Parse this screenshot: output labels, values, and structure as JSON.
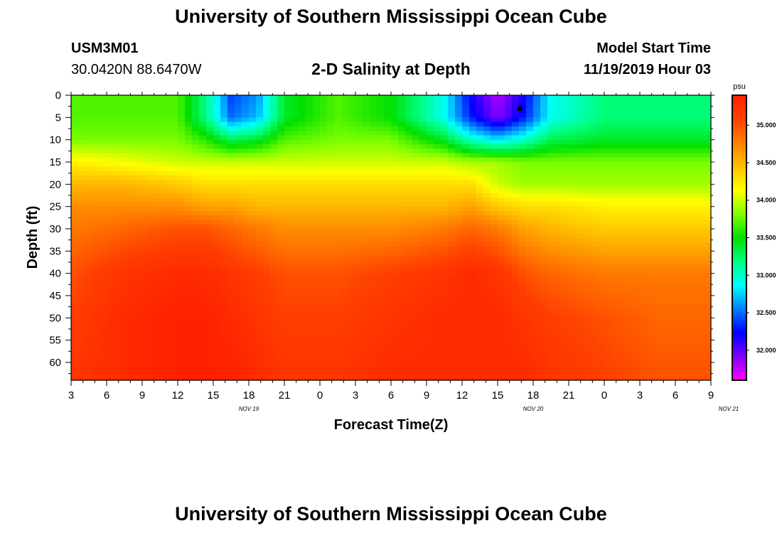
{
  "title_top": "University of Southern Mississippi Ocean Cube",
  "title_bottom": "University of Southern Mississippi Ocean Cube",
  "station_id": "USM3M01",
  "station_coords": "30.0420N 88.6470W",
  "model_start_label": "Model Start Time",
  "model_start_value": "11/19/2019 Hour 03",
  "colors": {
    "colormap": [
      "#ff00ff",
      "#8000ff",
      "#0000ff",
      "#0080ff",
      "#00ffff",
      "#00ff80",
      "#00e000",
      "#80ff00",
      "#ffff00",
      "#ffc000",
      "#ff8000",
      "#ff4000",
      "#ff2000"
    ]
  },
  "chart_data": {
    "type": "heatmap",
    "title": "2-D Salinity at Depth",
    "xlabel": "Forecast Time(Z)",
    "ylabel": "Depth (ft)",
    "x_tick_labels": [
      "3",
      "6",
      "9",
      "12",
      "15",
      "18",
      "21",
      "0",
      "3",
      "6",
      "9",
      "12",
      "15",
      "18",
      "21",
      "0",
      "3",
      "6",
      "9"
    ],
    "x_date_labels": [
      {
        "label": "NOV 19",
        "tick_index": 5
      },
      {
        "label": "NOV 20",
        "tick_index": 13
      },
      {
        "label": "NOV 21",
        "tick_index": 18.5
      }
    ],
    "y_ticks": [
      0,
      5,
      10,
      15,
      20,
      25,
      30,
      35,
      40,
      45,
      50,
      55,
      60
    ],
    "ylim": [
      0,
      64
    ],
    "colorbar": {
      "unit": "psu",
      "range": [
        31.6,
        35.4
      ],
      "tick_values": [
        32.0,
        32.5,
        33.0,
        33.5,
        34.0,
        34.5,
        35.0
      ],
      "tick_labels": [
        "32.000",
        "32.500",
        "33.000",
        "33.500",
        "34.000",
        "34.500",
        "35.000"
      ]
    },
    "times_hours": [
      0,
      6,
      12,
      15,
      18,
      21,
      24,
      30,
      36,
      42,
      45,
      48,
      51,
      54,
      60,
      66,
      72
    ],
    "depths_ft": [
      0,
      5,
      10,
      15,
      20,
      25,
      30,
      40,
      50,
      64
    ],
    "salinity_psu": [
      [
        33.7,
        33.7,
        33.7,
        33.2,
        32.4,
        32.6,
        33.4,
        33.7,
        33.5,
        32.9,
        32.2,
        31.8,
        32.2,
        32.9,
        33.2,
        33.2,
        33.2
      ],
      [
        33.7,
        33.7,
        33.7,
        33.2,
        32.5,
        32.7,
        33.4,
        33.7,
        33.5,
        32.9,
        32.3,
        31.9,
        32.3,
        32.9,
        33.2,
        33.2,
        33.2
      ],
      [
        33.8,
        33.8,
        33.8,
        33.6,
        33.3,
        33.4,
        33.7,
        33.8,
        33.8,
        33.4,
        33.0,
        32.8,
        33.0,
        33.3,
        33.4,
        33.4,
        33.4
      ],
      [
        34.2,
        34.1,
        34.0,
        34.0,
        34.0,
        34.0,
        34.0,
        34.0,
        34.0,
        34.0,
        33.9,
        33.9,
        33.8,
        33.8,
        33.8,
        33.8,
        33.8
      ],
      [
        34.5,
        34.5,
        34.4,
        34.3,
        34.3,
        34.3,
        34.3,
        34.3,
        34.3,
        34.3,
        34.3,
        34.0,
        33.9,
        33.9,
        33.9,
        33.9,
        33.9
      ],
      [
        34.7,
        34.7,
        34.7,
        34.6,
        34.6,
        34.5,
        34.5,
        34.5,
        34.5,
        34.5,
        34.6,
        34.4,
        34.3,
        34.3,
        34.2,
        34.2,
        34.2
      ],
      [
        34.8,
        34.9,
        35.0,
        35.0,
        34.9,
        34.8,
        34.7,
        34.7,
        34.7,
        34.8,
        34.9,
        34.8,
        34.6,
        34.5,
        34.4,
        34.4,
        34.4
      ],
      [
        35.0,
        35.2,
        35.3,
        35.3,
        35.2,
        35.1,
        35.0,
        35.0,
        35.1,
        35.2,
        35.3,
        35.2,
        35.0,
        34.9,
        34.8,
        34.8,
        34.8
      ],
      [
        35.1,
        35.3,
        35.4,
        35.4,
        35.3,
        35.2,
        35.1,
        35.1,
        35.2,
        35.3,
        35.3,
        35.3,
        35.2,
        35.1,
        35.0,
        34.9,
        34.9
      ],
      [
        35.2,
        35.3,
        35.4,
        35.4,
        35.4,
        35.3,
        35.2,
        35.2,
        35.3,
        35.3,
        35.3,
        35.3,
        35.3,
        35.2,
        35.1,
        35.0,
        35.0
      ]
    ],
    "marker": {
      "time_hours": 50.5,
      "depth_ft": 3
    }
  }
}
